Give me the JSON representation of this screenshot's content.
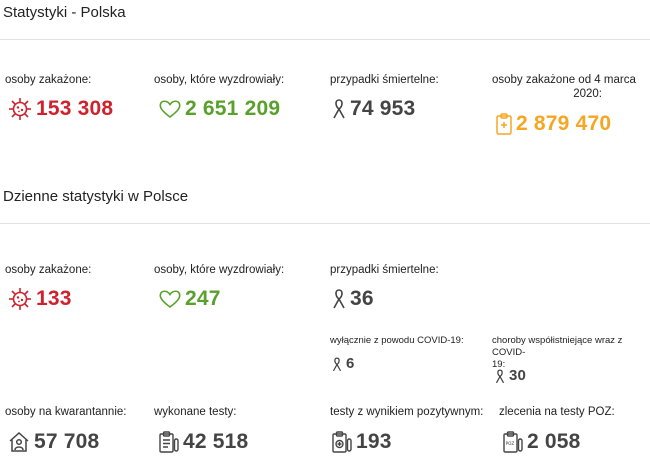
{
  "colors": {
    "infected": "#d0222c",
    "recovered": "#5aa02c",
    "deaths": "#444444",
    "since": "#f5a623"
  },
  "poland": {
    "title": "Statystyki - Polska",
    "infected": {
      "label": "osoby zakażone:",
      "value": "153 308",
      "icon": "virus-icon"
    },
    "recovered": {
      "label": "osoby, które wyzdrowiały:",
      "value": "2 651 209",
      "icon": "heart-icon"
    },
    "deaths": {
      "label": "przypadki śmiertelne:",
      "value": "74 953",
      "icon": "ribbon-icon"
    },
    "since": {
      "label_line1": "osoby zakażone od 4 marca",
      "label_line2": "2020:",
      "value": "2 879 470",
      "icon": "clipboard-icon"
    }
  },
  "daily": {
    "title": "Dzienne statystyki w Polsce",
    "infected": {
      "label": "osoby zakażone:",
      "value": "133",
      "icon": "virus-icon"
    },
    "recovered": {
      "label": "osoby, które wyzdrowiały:",
      "value": "247",
      "icon": "heart-icon"
    },
    "deaths": {
      "label": "przypadki śmiertelne:",
      "value": "36",
      "icon": "ribbon-icon"
    },
    "covid_only": {
      "label": "wyłącznie z powodu COVID-19:",
      "value": "6",
      "icon": "ribbon-icon"
    },
    "comorbid": {
      "label_line1": "choroby współistniejące wraz z COVID-",
      "label_line2": "19:",
      "value": "30",
      "icon": "ribbon-icon"
    },
    "quarantine": {
      "label": "osoby na kwarantannie:",
      "value": "57 708",
      "icon": "house-person-icon"
    },
    "tests": {
      "label": "wykonane testy:",
      "value": "42 518",
      "icon": "test-clipboard-icon"
    },
    "positive_tests": {
      "label": "testy z wynikiem pozytywnym:",
      "value": "193",
      "icon": "positive-test-icon"
    },
    "poz_orders": {
      "label": "zlecenia na testy POZ:",
      "value": "2 058",
      "icon": "poz-order-icon"
    }
  }
}
